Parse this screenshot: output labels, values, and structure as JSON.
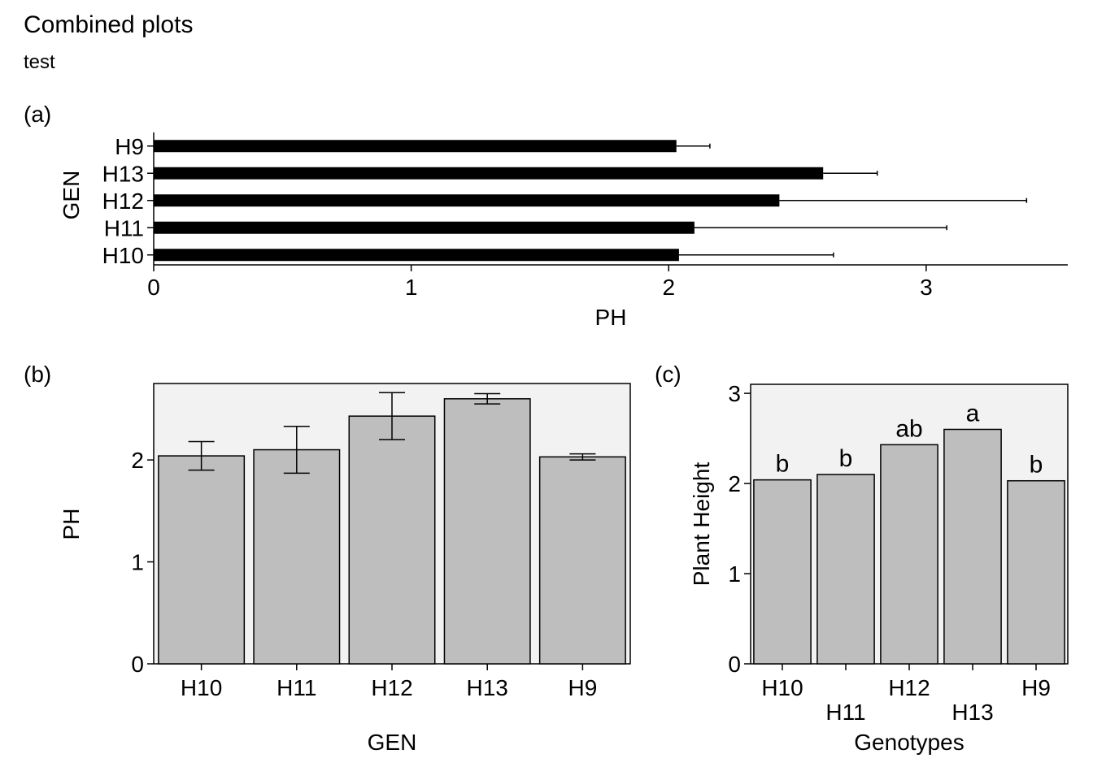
{
  "title": "Combined plots",
  "subtitle": "test",
  "chart_data": [
    {
      "tag": "(a)",
      "type": "bar",
      "orientation": "horizontal",
      "xlabel": "PH",
      "ylabel": "GEN",
      "categories": [
        "H10",
        "H11",
        "H12",
        "H13",
        "H9"
      ],
      "values": [
        2.04,
        2.1,
        2.43,
        2.6,
        2.03
      ],
      "error_upper": [
        2.64,
        3.08,
        3.39,
        2.81,
        2.16
      ],
      "xlim": [
        0,
        3.55
      ],
      "xticks": [
        "0",
        "1",
        "2",
        "3"
      ],
      "bar_color": "#000000"
    },
    {
      "tag": "(b)",
      "type": "bar",
      "xlabel": "GEN",
      "ylabel": "PH",
      "categories": [
        "H10",
        "H11",
        "H12",
        "H13",
        "H9"
      ],
      "values": [
        2.04,
        2.1,
        2.43,
        2.6,
        2.03
      ],
      "error_lower": [
        1.9,
        1.87,
        2.2,
        2.55,
        2.0
      ],
      "error_upper": [
        2.18,
        2.33,
        2.66,
        2.65,
        2.06
      ],
      "ylim": [
        0,
        2.75
      ],
      "yticks": [
        "0",
        "1",
        "2"
      ],
      "bar_color": "#bebebe",
      "panel_background": "#f2f2f2"
    },
    {
      "tag": "(c)",
      "type": "bar",
      "xlabel": "Genotypes",
      "ylabel": "Plant Height",
      "categories": [
        "H10",
        "H11",
        "H12",
        "H13",
        "H9"
      ],
      "values": [
        2.04,
        2.1,
        2.43,
        2.6,
        2.03
      ],
      "letters": [
        "b",
        "b",
        "ab",
        "a",
        "b"
      ],
      "ylim": [
        0,
        3.1
      ],
      "yticks": [
        "0",
        "1",
        "2",
        "3"
      ],
      "bar_color": "#bebebe",
      "panel_background": "#f2f2f2"
    }
  ]
}
